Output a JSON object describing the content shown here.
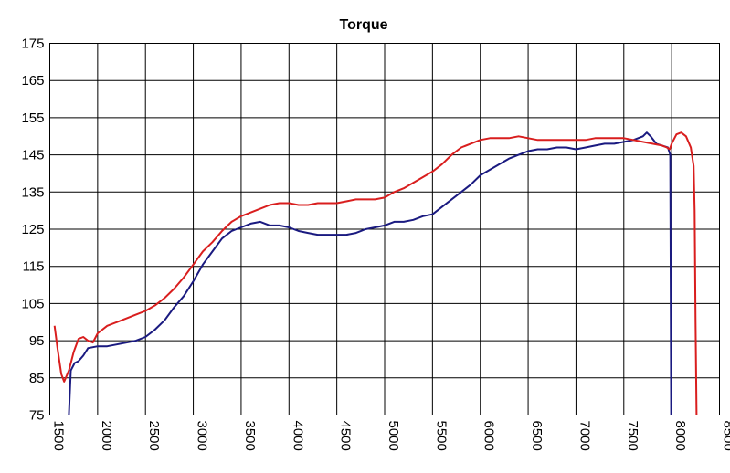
{
  "chart_data": {
    "type": "line",
    "title": "Torque",
    "xlabel": "",
    "ylabel": "",
    "xlim": [
      1500,
      8500
    ],
    "ylim": [
      75,
      175
    ],
    "xticks": [
      1500,
      2000,
      2500,
      3000,
      3500,
      4000,
      4500,
      5000,
      5500,
      6000,
      6500,
      7000,
      7500,
      8000,
      8500
    ],
    "yticks": [
      75,
      85,
      95,
      105,
      115,
      125,
      135,
      145,
      155,
      165,
      175
    ],
    "xtick_labels": [
      "1500",
      "2000",
      "2500",
      "3000",
      "3500",
      "4000",
      "4500",
      "5000",
      "5500",
      "6000",
      "6500",
      "7000",
      "7500",
      "8000",
      "8500"
    ],
    "ytick_labels": [
      "75",
      "85",
      "95",
      "105",
      "115",
      "125",
      "135",
      "145",
      "155",
      "165",
      "175"
    ],
    "grid": true,
    "legend": "none",
    "series": [
      {
        "color": "#1a1a80",
        "points": [
          [
            1700,
            75
          ],
          [
            1720,
            87
          ],
          [
            1760,
            89
          ],
          [
            1800,
            89.5
          ],
          [
            1850,
            91
          ],
          [
            1900,
            93
          ],
          [
            2000,
            93.5
          ],
          [
            2100,
            93.5
          ],
          [
            2200,
            94
          ],
          [
            2300,
            94.5
          ],
          [
            2400,
            95
          ],
          [
            2500,
            96
          ],
          [
            2600,
            98
          ],
          [
            2700,
            100.5
          ],
          [
            2800,
            104
          ],
          [
            2900,
            107
          ],
          [
            3000,
            111
          ],
          [
            3100,
            115.5
          ],
          [
            3200,
            119
          ],
          [
            3300,
            122.5
          ],
          [
            3400,
            124.5
          ],
          [
            3500,
            125.5
          ],
          [
            3600,
            126.5
          ],
          [
            3700,
            127
          ],
          [
            3800,
            126
          ],
          [
            3900,
            126
          ],
          [
            4000,
            125.5
          ],
          [
            4100,
            124.5
          ],
          [
            4200,
            124
          ],
          [
            4300,
            123.5
          ],
          [
            4400,
            123.5
          ],
          [
            4500,
            123.5
          ],
          [
            4600,
            123.5
          ],
          [
            4700,
            124
          ],
          [
            4800,
            125
          ],
          [
            4900,
            125.5
          ],
          [
            5000,
            126
          ],
          [
            5100,
            127
          ],
          [
            5200,
            127
          ],
          [
            5300,
            127.5
          ],
          [
            5400,
            128.5
          ],
          [
            5500,
            129
          ],
          [
            5600,
            131
          ],
          [
            5700,
            133
          ],
          [
            5800,
            135
          ],
          [
            5900,
            137
          ],
          [
            6000,
            139.5
          ],
          [
            6100,
            141
          ],
          [
            6200,
            142.5
          ],
          [
            6300,
            144
          ],
          [
            6400,
            145
          ],
          [
            6500,
            146
          ],
          [
            6600,
            146.5
          ],
          [
            6700,
            146.5
          ],
          [
            6800,
            147
          ],
          [
            6900,
            147
          ],
          [
            7000,
            146.5
          ],
          [
            7100,
            147
          ],
          [
            7200,
            147.5
          ],
          [
            7300,
            148
          ],
          [
            7400,
            148
          ],
          [
            7500,
            148.5
          ],
          [
            7600,
            149
          ],
          [
            7700,
            150
          ],
          [
            7740,
            151
          ],
          [
            7780,
            150
          ],
          [
            7840,
            148
          ],
          [
            7900,
            147.5
          ],
          [
            7960,
            147
          ],
          [
            7985,
            145
          ],
          [
            7990,
            110
          ],
          [
            7995,
            75
          ]
        ]
      },
      {
        "color": "#d91e1e",
        "points": [
          [
            1550,
            99
          ],
          [
            1580,
            93
          ],
          [
            1620,
            86
          ],
          [
            1650,
            84
          ],
          [
            1700,
            87
          ],
          [
            1750,
            92
          ],
          [
            1800,
            95.5
          ],
          [
            1850,
            96
          ],
          [
            1900,
            95
          ],
          [
            1950,
            94.5
          ],
          [
            2000,
            97
          ],
          [
            2100,
            99
          ],
          [
            2200,
            100
          ],
          [
            2300,
            101
          ],
          [
            2400,
            102
          ],
          [
            2500,
            103
          ],
          [
            2600,
            104.5
          ],
          [
            2700,
            106.5
          ],
          [
            2800,
            109
          ],
          [
            2900,
            112
          ],
          [
            3000,
            115.5
          ],
          [
            3100,
            119
          ],
          [
            3200,
            121.5
          ],
          [
            3300,
            124.5
          ],
          [
            3400,
            127
          ],
          [
            3500,
            128.5
          ],
          [
            3600,
            129.5
          ],
          [
            3700,
            130.5
          ],
          [
            3800,
            131.5
          ],
          [
            3900,
            132
          ],
          [
            4000,
            132
          ],
          [
            4100,
            131.5
          ],
          [
            4200,
            131.5
          ],
          [
            4300,
            132
          ],
          [
            4400,
            132
          ],
          [
            4500,
            132
          ],
          [
            4600,
            132.5
          ],
          [
            4700,
            133
          ],
          [
            4800,
            133
          ],
          [
            4900,
            133
          ],
          [
            5000,
            133.5
          ],
          [
            5100,
            135
          ],
          [
            5200,
            136
          ],
          [
            5300,
            137.5
          ],
          [
            5400,
            139
          ],
          [
            5500,
            140.5
          ],
          [
            5600,
            142.5
          ],
          [
            5700,
            145
          ],
          [
            5800,
            147
          ],
          [
            5900,
            148
          ],
          [
            6000,
            149
          ],
          [
            6100,
            149.5
          ],
          [
            6200,
            149.5
          ],
          [
            6300,
            149.5
          ],
          [
            6400,
            150
          ],
          [
            6500,
            149.5
          ],
          [
            6600,
            149
          ],
          [
            6700,
            149
          ],
          [
            6800,
            149
          ],
          [
            6900,
            149
          ],
          [
            7000,
            149
          ],
          [
            7100,
            149
          ],
          [
            7200,
            149.5
          ],
          [
            7300,
            149.5
          ],
          [
            7400,
            149.5
          ],
          [
            7500,
            149.5
          ],
          [
            7600,
            149
          ],
          [
            7700,
            148.5
          ],
          [
            7800,
            148
          ],
          [
            7900,
            147.5
          ],
          [
            7950,
            147
          ],
          [
            7980,
            146.5
          ],
          [
            8000,
            148
          ],
          [
            8050,
            150.5
          ],
          [
            8100,
            151
          ],
          [
            8150,
            150
          ],
          [
            8200,
            147
          ],
          [
            8230,
            142
          ],
          [
            8240,
            130
          ],
          [
            8250,
            100
          ],
          [
            8260,
            75
          ]
        ]
      }
    ]
  }
}
